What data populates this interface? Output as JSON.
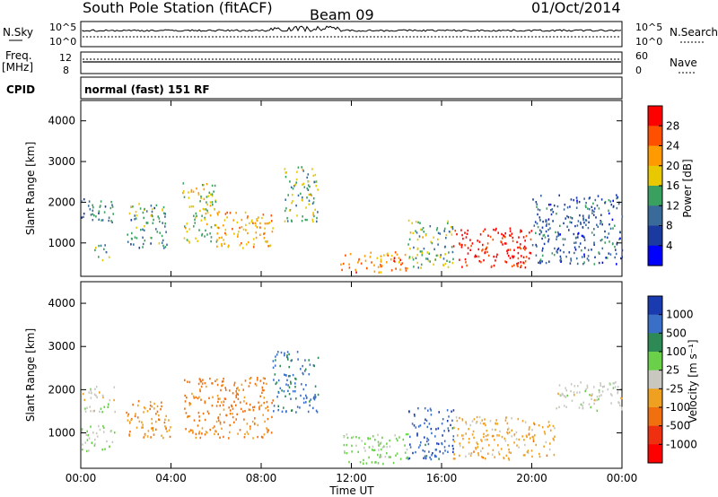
{
  "header": {
    "station": "South Pole Station (fitACF)",
    "beam": "Beam 09",
    "date": "01/Oct/2014"
  },
  "top_panels": {
    "nsky_label": "N.Sky",
    "nsearch_label": "N.Search",
    "freq_label": "Freq.",
    "freq_unit": "[MHz]",
    "nave_label": "Nave",
    "cpid_label": "CPID",
    "mode_text": "normal (fast) 151 RF",
    "noise_ticks": [
      "10^5",
      "10^0"
    ],
    "freq_ticks": [
      "12",
      "8"
    ],
    "nave_ticks": [
      "60",
      "0"
    ]
  },
  "axes": {
    "ylabel": "Slant Range [km]",
    "xlabel": "Time UT",
    "x_ticks": [
      "00:00",
      "04:00",
      "08:00",
      "12:00",
      "16:00",
      "20:00",
      "00:00"
    ],
    "y_ticks": [
      "4000",
      "3000",
      "2000",
      "1000"
    ]
  },
  "colorbars": {
    "power": {
      "label": "Power [dB]",
      "ticks": [
        "28",
        "24",
        "20",
        "16",
        "12",
        "8",
        "4"
      ],
      "colors": [
        "#ff0000",
        "#ff5000",
        "#ff9a00",
        "#e8c800",
        "#3aa060",
        "#3a6a9a",
        "#1a3aa0",
        "#0000ff"
      ]
    },
    "velocity": {
      "label": "Velocity [m s⁻¹]",
      "ticks": [
        "1000",
        "500",
        "100",
        "25",
        "-25",
        "-100",
        "-500",
        "-1000"
      ],
      "colors": [
        "#1a3ab0",
        "#3a6fc8",
        "#2e8a55",
        "#6ad04a",
        "#c8c8c0",
        "#f0a020",
        "#f07010",
        "#ee3010",
        "#ff0000"
      ]
    }
  },
  "chart_data": [
    {
      "type": "heatmap",
      "title": "Power",
      "xlabel": "Time UT",
      "ylabel": "Slant Range [km]",
      "xlim": [
        "00:00",
        "24:00"
      ],
      "ylim": [
        180,
        4500
      ],
      "colorbar": {
        "label": "Power [dB]",
        "range": [
          0,
          30
        ]
      },
      "regions": [
        {
          "x": [
            0.0,
            1.5
          ],
          "y": [
            1500,
            2100
          ],
          "value": 10
        },
        {
          "x": [
            0.6,
            1.3
          ],
          "y": [
            600,
            1000
          ],
          "value": 14
        },
        {
          "x": [
            2.0,
            3.8
          ],
          "y": [
            900,
            2000
          ],
          "value": 12
        },
        {
          "x": [
            4.5,
            6.0
          ],
          "y": [
            1000,
            2500
          ],
          "value": 16
        },
        {
          "x": [
            6.0,
            8.5
          ],
          "y": [
            900,
            1800
          ],
          "value": 20
        },
        {
          "x": [
            9.0,
            10.5
          ],
          "y": [
            1500,
            2900
          ],
          "value": 14
        },
        {
          "x": [
            11.5,
            14.5
          ],
          "y": [
            300,
            800
          ],
          "value": 22
        },
        {
          "x": [
            14.5,
            16.5
          ],
          "y": [
            400,
            1600
          ],
          "value": 14
        },
        {
          "x": [
            16.5,
            20.0
          ],
          "y": [
            400,
            1400
          ],
          "value": 28
        },
        {
          "x": [
            20.0,
            24.0
          ],
          "y": [
            500,
            2200
          ],
          "value": 8
        }
      ]
    },
    {
      "type": "heatmap",
      "title": "Velocity",
      "xlabel": "Time UT",
      "ylabel": "Slant Range [km]",
      "xlim": [
        "00:00",
        "24:00"
      ],
      "ylim": [
        180,
        4500
      ],
      "colorbar": {
        "label": "Velocity [m s⁻¹]",
        "range": [
          -1000,
          1000
        ]
      },
      "regions": [
        {
          "x": [
            0.0,
            1.5
          ],
          "y": [
            1500,
            2100
          ],
          "value": 0
        },
        {
          "x": [
            0.0,
            1.5
          ],
          "y": [
            600,
            1200
          ],
          "value": 100
        },
        {
          "x": [
            2.0,
            4.0
          ],
          "y": [
            900,
            1800
          ],
          "value": -300
        },
        {
          "x": [
            4.5,
            8.5
          ],
          "y": [
            900,
            2300
          ],
          "value": -400
        },
        {
          "x": [
            8.5,
            10.5
          ],
          "y": [
            1500,
            2900
          ],
          "value": 600
        },
        {
          "x": [
            11.5,
            14.5
          ],
          "y": [
            300,
            1000
          ],
          "value": 150
        },
        {
          "x": [
            14.5,
            16.5
          ],
          "y": [
            400,
            1600
          ],
          "value": 700
        },
        {
          "x": [
            16.5,
            21.0
          ],
          "y": [
            400,
            1400
          ],
          "value": -200
        },
        {
          "x": [
            21.0,
            24.0
          ],
          "y": [
            1500,
            2200
          ],
          "value": 0
        }
      ]
    }
  ]
}
